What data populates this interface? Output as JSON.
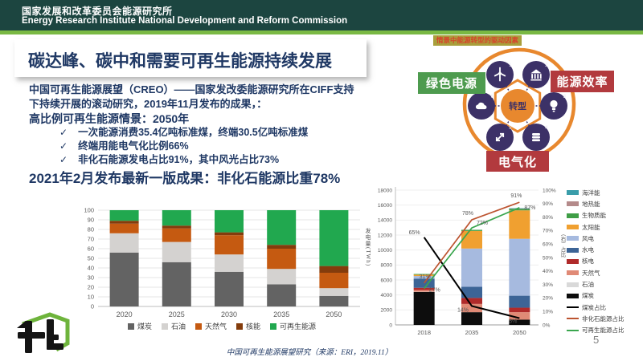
{
  "header": {
    "org_cn": "国家发展和改革委员会能源研究所",
    "org_en": "Energy Research Institute National Development and Reform Commission"
  },
  "title": "碳达峰、碳中和需要可再生能源持续发展",
  "intro": {
    "paragraph": "中国可再生能源展望（CREO）——国家发改委能源研究所在CIFF支持下持续开展的滚动研究，2019年11月发布的成果，：",
    "scenario_heading": "高比例可再生能源情景：2050年",
    "check_glyph": "✓",
    "bullets": [
      "一次能源消费35.4亿吨标准煤，终端30.5亿吨标准煤",
      "终端用能电气化比例66%",
      "非化石能源发电占比91%，其中风光占比73%"
    ],
    "highlight": "2021年2月发布最新一版成果：非化石能源比重78%"
  },
  "diagram": {
    "caption": "情景中能源转型的驱动因素",
    "center_label": "转型",
    "boxes": {
      "green_power": "绿色电源",
      "energy_efficiency": "能源效率",
      "electrification": "电气化"
    },
    "nodes": [
      {
        "num": "1",
        "icon": "wind-turbine"
      },
      {
        "num": "2",
        "icon": "government-building"
      },
      {
        "num": "3",
        "icon": "light-bulb"
      },
      {
        "num": "4",
        "icon": "coins"
      },
      {
        "num": "5",
        "icon": "arrows-expand"
      },
      {
        "num": "6",
        "icon": "cloud"
      }
    ],
    "colors": {
      "ring": "#e8882e",
      "node": "#3c3167",
      "green_box": "#4e9b4f",
      "red_box": "#b23a3e",
      "tag_bg": "#a99f3c",
      "tag_text": "#d6432b"
    }
  },
  "chart_data": [
    {
      "type": "bar",
      "subtype": "stacked-100",
      "categories": [
        "2020",
        "2025",
        "2030",
        "2035",
        "2050"
      ],
      "series": [
        {
          "name": "煤炭",
          "color": "#636363",
          "values": [
            56,
            46,
            36,
            23,
            11
          ]
        },
        {
          "name": "石油",
          "color": "#d4d2d0",
          "values": [
            20,
            21,
            18,
            16,
            8
          ]
        },
        {
          "name": "天然气",
          "color": "#c55a11",
          "values": [
            10,
            14,
            20,
            21,
            16
          ]
        },
        {
          "name": "核能",
          "color": "#843c0c",
          "values": [
            3,
            3,
            3,
            4,
            7
          ]
        },
        {
          "name": "可再生能源",
          "color": "#21a84f",
          "values": [
            11,
            16,
            23,
            36,
            58
          ]
        }
      ],
      "title": "一次能源结构（%）",
      "xlabel": "",
      "ylabel": "",
      "ylim": [
        0,
        100
      ],
      "ytick_step": 10,
      "grid": true,
      "legend_position": "bottom",
      "unit": "%"
    },
    {
      "type": "bar",
      "subtype": "combo-stacked-bar-line",
      "categories": [
        "2018",
        "2035",
        "2050"
      ],
      "ylabel_left": "发电量(TWh)",
      "ylabel_right": "（右）占比",
      "ylim_left": [
        0,
        18000
      ],
      "ytick_step_left": 2000,
      "ylim_right": [
        0,
        100
      ],
      "ytick_step_right": 10,
      "bar_series": [
        {
          "name": "煤炭",
          "color": "#0d0d0d",
          "values": [
            4400,
            1700,
            700
          ]
        },
        {
          "name": "石油",
          "color": "#d9d9d9",
          "values": [
            30,
            0,
            0
          ]
        },
        {
          "name": "天然气",
          "color": "#e08a76",
          "values": [
            230,
            1100,
            1000
          ]
        },
        {
          "name": "核电",
          "color": "#b02a2a",
          "values": [
            300,
            800,
            600
          ]
        },
        {
          "name": "水电",
          "color": "#3c6496",
          "values": [
            1200,
            1500,
            1600
          ]
        },
        {
          "name": "风电",
          "color": "#a6badf",
          "values": [
            370,
            5100,
            7600
          ]
        },
        {
          "name": "太阳能",
          "color": "#f0a030",
          "values": [
            180,
            2350,
            3800
          ]
        },
        {
          "name": "生物质能",
          "color": "#3f9e46",
          "values": [
            90,
            150,
            200
          ]
        },
        {
          "name": "地热能",
          "color": "#b48a8a",
          "values": [
            0,
            0,
            50
          ]
        },
        {
          "name": "海洋能",
          "color": "#3a9daa",
          "values": [
            0,
            0,
            50
          ]
        }
      ],
      "line_series": [
        {
          "name": "煤炭占比",
          "color": "#000000",
          "values": [
            65,
            14,
            5
          ],
          "labels": [
            "65%",
            "14%",
            "5%"
          ]
        },
        {
          "name": "非化石能源占比",
          "color": "#bc5430",
          "values": [
            31,
            78,
            91
          ],
          "labels": [
            "31%",
            "78%",
            "91%"
          ]
        },
        {
          "name": "可再生能源占比",
          "color": "#3aa64e",
          "values": [
            27,
            72,
            87
          ],
          "labels": [
            "27%",
            "72%",
            "87%"
          ]
        }
      ],
      "grid": true,
      "legend_position": "right"
    }
  ],
  "footer": {
    "source": "中国可再生能源展望研究（来源：ERI，2019.11）",
    "page": "5"
  }
}
